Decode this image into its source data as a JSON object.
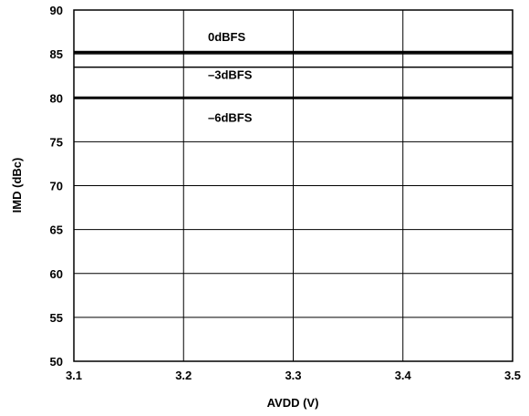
{
  "chart_data": {
    "type": "line",
    "xlabel": "AVDD (V)",
    "ylabel": "IMD (dBc)",
    "xlim": [
      3.1,
      3.5
    ],
    "ylim": [
      50,
      90
    ],
    "x_ticks": [
      "3.1",
      "3.2",
      "3.3",
      "3.4",
      "3.5"
    ],
    "y_ticks": [
      "50",
      "55",
      "60",
      "65",
      "70",
      "75",
      "80",
      "85",
      "90"
    ],
    "grid": true,
    "series": [
      {
        "name": "0dBFS",
        "x": [
          3.1,
          3.5
        ],
        "y": [
          85.2,
          85.2
        ]
      },
      {
        "name": "–3dBFS",
        "x": [
          3.1,
          3.5
        ],
        "y": [
          83.5,
          83.5
        ]
      },
      {
        "name": "–6dBFS",
        "x": [
          3.1,
          3.5
        ],
        "y": [
          80.0,
          80.0
        ]
      }
    ]
  }
}
